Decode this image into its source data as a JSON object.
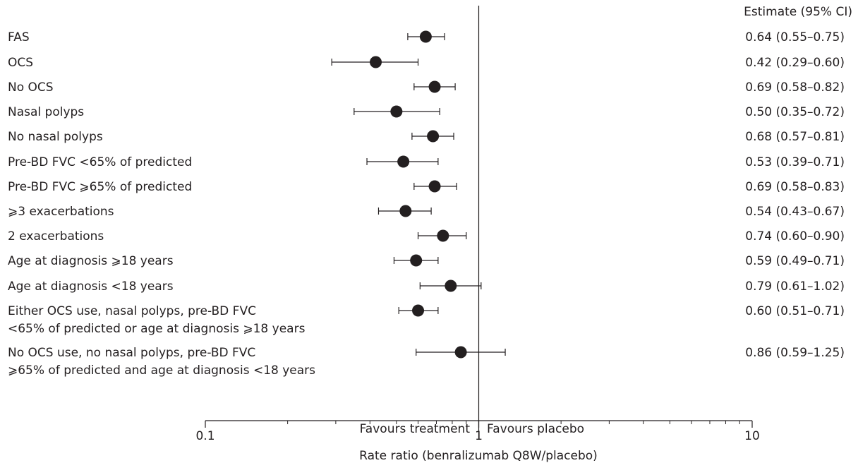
{
  "chart_data": {
    "type": "forest",
    "estimate_header": "Estimate (95% CI)",
    "xlabel": "Rate ratio (benralizumab Q8W/placebo)",
    "xscale": "log",
    "xlim": [
      0.1,
      10
    ],
    "reference_line": 1,
    "favours_left": "Favours treatment",
    "favours_right": "Favours placebo",
    "ticks": [
      {
        "value": 0.1,
        "label": "0.1"
      },
      {
        "value": 1,
        "label": "1"
      },
      {
        "value": 10,
        "label": "10"
      }
    ],
    "rows": [
      {
        "label": [
          "FAS"
        ],
        "estimate": 0.64,
        "lower": 0.55,
        "upper": 0.75,
        "text": "0.64 (0.55–0.75)"
      },
      {
        "label": [
          "OCS"
        ],
        "estimate": 0.42,
        "lower": 0.29,
        "upper": 0.6,
        "text": "0.42 (0.29–0.60)"
      },
      {
        "label": [
          "No OCS"
        ],
        "estimate": 0.69,
        "lower": 0.58,
        "upper": 0.82,
        "text": "0.69 (0.58–0.82)"
      },
      {
        "label": [
          "Nasal polyps"
        ],
        "estimate": 0.5,
        "lower": 0.35,
        "upper": 0.72,
        "text": "0.50 (0.35–0.72)"
      },
      {
        "label": [
          "No nasal polyps"
        ],
        "estimate": 0.68,
        "lower": 0.57,
        "upper": 0.81,
        "text": "0.68 (0.57–0.81)"
      },
      {
        "label": [
          "Pre-BD FVC <65% of predicted"
        ],
        "estimate": 0.53,
        "lower": 0.39,
        "upper": 0.71,
        "text": "0.53 (0.39–0.71)"
      },
      {
        "label": [
          "Pre-BD FVC ⩾65% of predicted"
        ],
        "estimate": 0.69,
        "lower": 0.58,
        "upper": 0.83,
        "text": "0.69 (0.58–0.83)"
      },
      {
        "label": [
          "⩾3 exacerbations"
        ],
        "estimate": 0.54,
        "lower": 0.43,
        "upper": 0.67,
        "text": "0.54 (0.43–0.67)"
      },
      {
        "label": [
          "2 exacerbations"
        ],
        "estimate": 0.74,
        "lower": 0.6,
        "upper": 0.9,
        "text": "0.74 (0.60–0.90)"
      },
      {
        "label": [
          "Age at diagnosis ⩾18 years"
        ],
        "estimate": 0.59,
        "lower": 0.49,
        "upper": 0.71,
        "text": "0.59 (0.49–0.71)"
      },
      {
        "label": [
          "Age at diagnosis <18 years"
        ],
        "estimate": 0.79,
        "lower": 0.61,
        "upper": 1.02,
        "text": "0.79 (0.61–1.02)"
      },
      {
        "label": [
          "Either OCS use, nasal polyps, pre-BD FVC",
          "<65% of predicted or age at diagnosis ⩾18 years"
        ],
        "estimate": 0.6,
        "lower": 0.51,
        "upper": 0.71,
        "text": "0.60 (0.51–0.71)"
      },
      {
        "label": [
          "No OCS use, no nasal polyps, pre-BD FVC",
          "⩾65% of predicted and age at diagnosis <18 years"
        ],
        "estimate": 0.86,
        "lower": 0.59,
        "upper": 1.25,
        "text": "0.86 (0.59–1.25)"
      }
    ],
    "colors": {
      "ink": "#231f20",
      "marker": "#231f20"
    }
  }
}
